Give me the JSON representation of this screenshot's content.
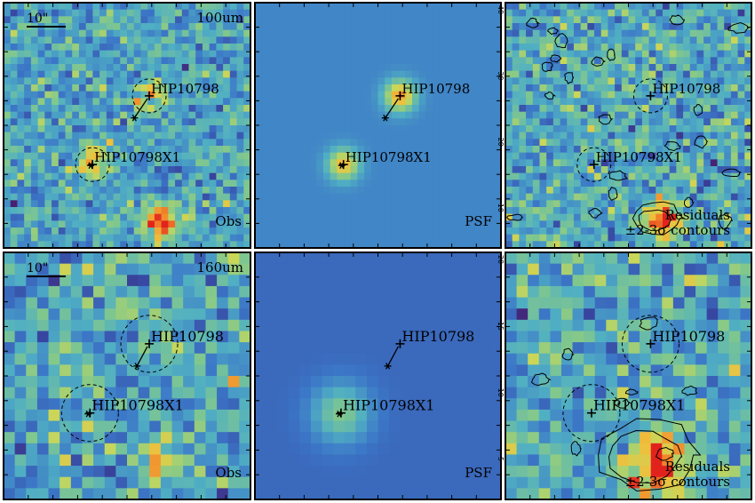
{
  "figure": {
    "rows": [
      {
        "band": "100um",
        "scale_bar": "10\"",
        "panels": [
          {
            "kind": "obs",
            "label": "Obs"
          },
          {
            "kind": "psf",
            "label": "PSF",
            "y_ticks": [
              "40",
              "30",
              "20",
              "10"
            ]
          },
          {
            "kind": "residual",
            "label_line1": "Residuals",
            "label_line2": "±2-3σ contours"
          }
        ]
      },
      {
        "band": "160um",
        "scale_bar": "10\"",
        "panels": [
          {
            "kind": "obs",
            "label": "Obs"
          },
          {
            "kind": "psf",
            "label": "PSF",
            "y_ticks": [
              "20",
              "15",
              "10",
              "5"
            ]
          },
          {
            "kind": "residual",
            "label_line1": "Residuals",
            "label_line2": "±2-3σ contours"
          }
        ]
      }
    ],
    "sources": [
      {
        "name": "HIP10798"
      },
      {
        "name": "HIP10798X1"
      }
    ]
  }
}
